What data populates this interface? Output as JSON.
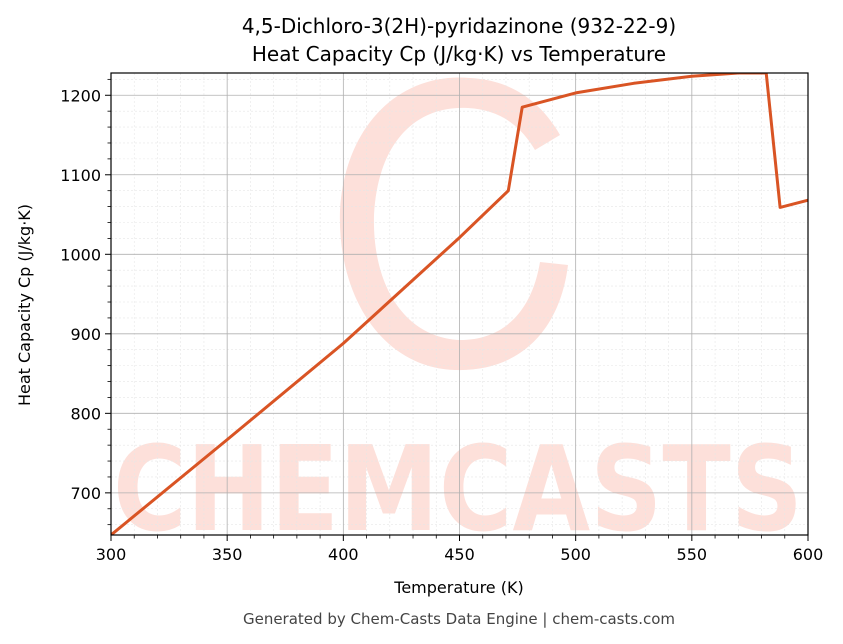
{
  "chart_data": {
    "type": "line",
    "title_line1": "4,5-Dichloro-3(2H)-pyridazinone (932-22-9)",
    "title_line2": "Heat Capacity Cp (J/kg·K) vs Temperature",
    "xlabel": "Temperature (K)",
    "ylabel": "Heat Capacity Cp (J/kg·K)",
    "xlim": [
      300,
      600
    ],
    "ylim": [
      647,
      1228
    ],
    "x_ticks": [
      300,
      350,
      400,
      450,
      500,
      550,
      600
    ],
    "y_ticks": [
      700,
      800,
      900,
      1000,
      1100,
      1200
    ],
    "grid": true,
    "legend": "none",
    "series": [
      {
        "color": "#d95424",
        "x": [
          300,
          350,
          400,
          450,
          471,
          477,
          500,
          525,
          550,
          570,
          582,
          588,
          600
        ],
        "y": [
          647,
          767,
          888,
          1021,
          1080,
          1185,
          1203,
          1215,
          1224,
          1228,
          1228,
          1059,
          1068
        ]
      }
    ]
  },
  "watermark": {
    "text": "CHEMCASTS",
    "color": "#fde0da"
  },
  "footer": "Generated by Chem-Casts Data Engine | chem-casts.com"
}
